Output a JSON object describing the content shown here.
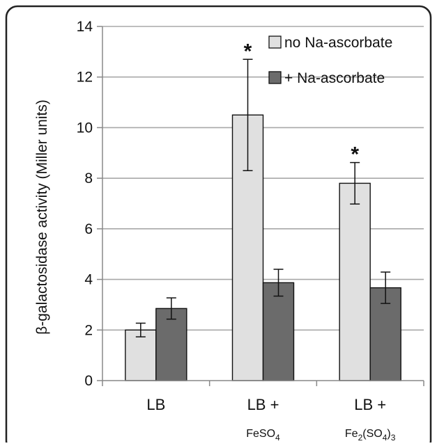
{
  "chart_data": {
    "type": "bar",
    "title": "",
    "xlabel": "",
    "ylabel": "β-galactosidase activity (Miller units)",
    "ylim": [
      0,
      14
    ],
    "yticks": [
      0,
      2,
      4,
      6,
      8,
      10,
      12,
      14
    ],
    "grid": true,
    "legend_position": "top-right",
    "categories": [
      {
        "main": "LB",
        "sub": []
      },
      {
        "main": "LB +",
        "sub": [
          {
            "t": "FeSO"
          },
          {
            "t": "4",
            "sub": true
          }
        ]
      },
      {
        "main": "LB +",
        "sub": [
          {
            "t": "Fe"
          },
          {
            "t": "2",
            "sub": true
          },
          {
            "t": "(SO"
          },
          {
            "t": "4",
            "sub": true
          },
          {
            "t": ")"
          },
          {
            "t": "3",
            "sub": true
          }
        ]
      }
    ],
    "series": [
      {
        "name": "no Na-ascorbate",
        "color": "#e0e0e0",
        "values": [
          2.0,
          10.5,
          7.8
        ],
        "errors": [
          0.27,
          2.2,
          0.82
        ],
        "significant": [
          false,
          true,
          true
        ]
      },
      {
        "name": "+ Na-ascorbate",
        "color": "#6b6b6b",
        "values": [
          2.85,
          3.87,
          3.67
        ],
        "errors": [
          0.42,
          0.53,
          0.62
        ],
        "significant": [
          false,
          false,
          false
        ]
      }
    ],
    "significance_marker": "*"
  }
}
